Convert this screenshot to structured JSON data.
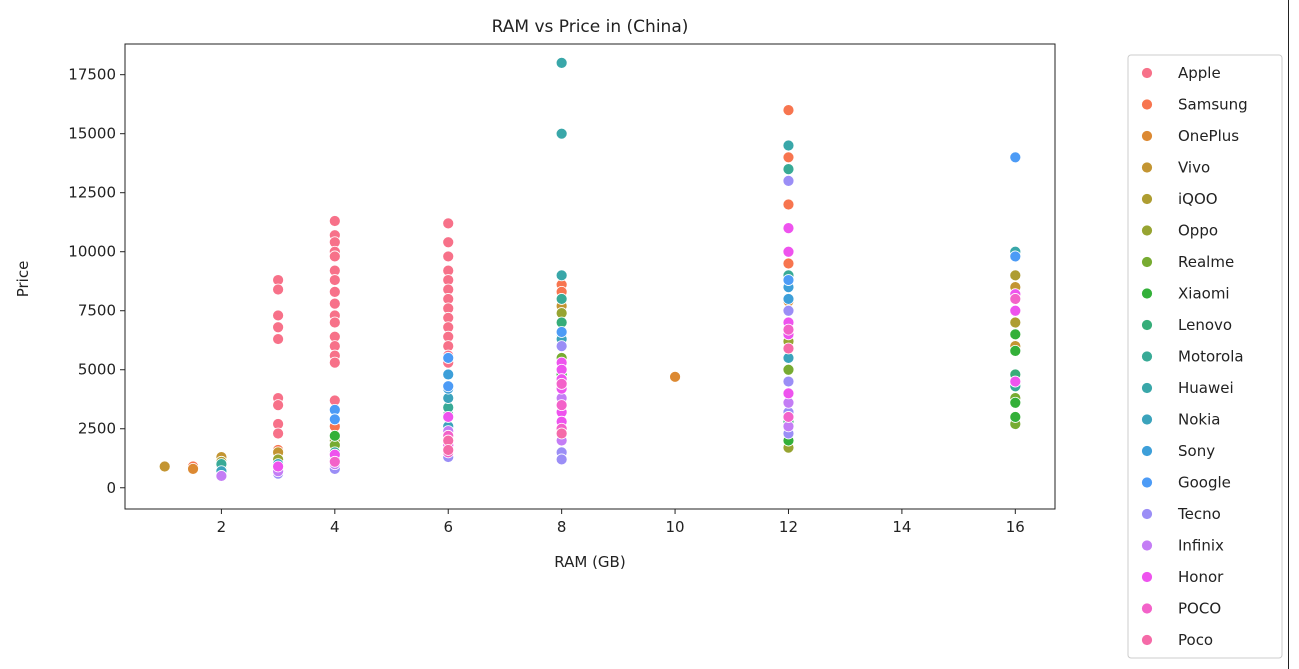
{
  "chart_data": {
    "type": "scatter",
    "title": "RAM vs Price in (China)",
    "xlabel": "RAM (GB)",
    "ylabel": "Price",
    "xlim": [
      0.3,
      16.7
    ],
    "ylim": [
      -900,
      18800
    ],
    "xticks": [
      2,
      4,
      6,
      8,
      10,
      12,
      14,
      16
    ],
    "yticks": [
      0,
      2500,
      5000,
      7500,
      10000,
      12500,
      15000,
      17500
    ],
    "legend_position": "outside-right",
    "grid": false,
    "series": [
      {
        "name": "Apple",
        "color": "#f77189",
        "points": [
          [
            3,
            8800
          ],
          [
            3,
            8400
          ],
          [
            3,
            7300
          ],
          [
            3,
            6800
          ],
          [
            3,
            6300
          ],
          [
            3,
            3800
          ],
          [
            3,
            3500
          ],
          [
            3,
            2700
          ],
          [
            3,
            2300
          ],
          [
            4,
            11300
          ],
          [
            4,
            10700
          ],
          [
            4,
            10400
          ],
          [
            4,
            10000
          ],
          [
            4,
            9800
          ],
          [
            4,
            9200
          ],
          [
            4,
            8800
          ],
          [
            4,
            8300
          ],
          [
            4,
            7800
          ],
          [
            4,
            7300
          ],
          [
            4,
            7000
          ],
          [
            4,
            6400
          ],
          [
            4,
            6000
          ],
          [
            4,
            5600
          ],
          [
            4,
            5300
          ],
          [
            4,
            3700
          ],
          [
            6,
            11200
          ],
          [
            6,
            10400
          ],
          [
            6,
            9800
          ],
          [
            6,
            9200
          ],
          [
            6,
            8800
          ],
          [
            6,
            8400
          ],
          [
            6,
            8000
          ],
          [
            6,
            7600
          ],
          [
            6,
            7200
          ],
          [
            6,
            6800
          ],
          [
            6,
            6400
          ],
          [
            6,
            6000
          ],
          [
            6,
            5600
          ],
          [
            6,
            5300
          ]
        ]
      },
      {
        "name": "Samsung",
        "color": "#f7754f",
        "points": [
          [
            1.5,
            900
          ],
          [
            3,
            1600
          ],
          [
            4,
            2600
          ],
          [
            8,
            8600
          ],
          [
            8,
            8300
          ],
          [
            12,
            16000
          ],
          [
            12,
            14000
          ],
          [
            12,
            12000
          ],
          [
            12,
            9500
          ]
        ]
      },
      {
        "name": "OnePlus",
        "color": "#dc8932",
        "points": [
          [
            1.5,
            800
          ],
          [
            10,
            4700
          ],
          [
            12,
            7900
          ]
        ]
      },
      {
        "name": "Vivo",
        "color": "#c39532",
        "points": [
          [
            1,
            900
          ],
          [
            2,
            1300
          ],
          [
            3,
            1500
          ],
          [
            8,
            7700
          ],
          [
            16,
            8500
          ],
          [
            16,
            6000
          ]
        ]
      },
      {
        "name": "iQOO",
        "color": "#ae9d31",
        "points": [
          [
            2,
            1100
          ],
          [
            16,
            9000
          ],
          [
            16,
            7000
          ]
        ]
      },
      {
        "name": "Oppo",
        "color": "#97a431",
        "points": [
          [
            3,
            1200
          ],
          [
            4,
            2000
          ],
          [
            8,
            7400
          ],
          [
            12,
            6200
          ],
          [
            12,
            1700
          ]
        ]
      },
      {
        "name": "Realme",
        "color": "#77ab31",
        "points": [
          [
            2,
            900
          ],
          [
            4,
            1800
          ],
          [
            8,
            5500
          ],
          [
            12,
            5000
          ],
          [
            16,
            3800
          ],
          [
            16,
            2700
          ]
        ]
      },
      {
        "name": "Xiaomi",
        "color": "#33b039",
        "points": [
          [
            4,
            2200
          ],
          [
            8,
            4800
          ],
          [
            12,
            2000
          ],
          [
            16,
            6500
          ],
          [
            16,
            5800
          ],
          [
            16,
            3600
          ],
          [
            16,
            3000
          ]
        ]
      },
      {
        "name": "Lenovo",
        "color": "#36ad79",
        "points": [
          [
            6,
            3100
          ],
          [
            8,
            7000
          ],
          [
            12,
            2800
          ],
          [
            16,
            4800
          ]
        ]
      },
      {
        "name": "Motorola",
        "color": "#38aa96",
        "points": [
          [
            2,
            1000
          ],
          [
            4,
            1500
          ],
          [
            6,
            3400
          ],
          [
            8,
            8000
          ],
          [
            8,
            6500
          ],
          [
            12,
            13500
          ],
          [
            12,
            9000
          ],
          [
            16,
            4300
          ]
        ]
      },
      {
        "name": "Huawei",
        "color": "#39a7a9",
        "points": [
          [
            8,
            18000
          ],
          [
            8,
            15000
          ],
          [
            8,
            9000
          ],
          [
            12,
            14500
          ],
          [
            16,
            10000
          ]
        ]
      },
      {
        "name": "Nokia",
        "color": "#3ba3bc",
        "points": [
          [
            2,
            700
          ],
          [
            3,
            1000
          ],
          [
            4,
            1200
          ],
          [
            6,
            3800
          ],
          [
            6,
            2600
          ],
          [
            8,
            6300
          ],
          [
            12,
            5500
          ]
        ]
      },
      {
        "name": "Sony",
        "color": "#3d9fd9",
        "points": [
          [
            6,
            4800
          ],
          [
            6,
            4200
          ],
          [
            12,
            8500
          ],
          [
            12,
            8000
          ]
        ]
      },
      {
        "name": "Google",
        "color": "#4c9bf6",
        "points": [
          [
            4,
            3300
          ],
          [
            4,
            2900
          ],
          [
            6,
            5500
          ],
          [
            6,
            4300
          ],
          [
            8,
            6600
          ],
          [
            12,
            8800
          ],
          [
            16,
            14000
          ],
          [
            16,
            9800
          ]
        ]
      },
      {
        "name": "Tecno",
        "color": "#9b8ef6",
        "points": [
          [
            3,
            600
          ],
          [
            4,
            800
          ],
          [
            6,
            1300
          ],
          [
            8,
            6000
          ],
          [
            8,
            1500
          ],
          [
            8,
            1200
          ],
          [
            12,
            13000
          ],
          [
            12,
            7500
          ],
          [
            12,
            4500
          ],
          [
            12,
            3200
          ],
          [
            12,
            2300
          ]
        ]
      },
      {
        "name": "Infinix",
        "color": "#c47df5",
        "points": [
          [
            2,
            500
          ],
          [
            3,
            700
          ],
          [
            4,
            1000
          ],
          [
            6,
            2400
          ],
          [
            8,
            3800
          ],
          [
            8,
            2000
          ],
          [
            12,
            3600
          ],
          [
            12,
            2600
          ]
        ]
      },
      {
        "name": "Honor",
        "color": "#ee53ee",
        "points": [
          [
            3,
            900
          ],
          [
            4,
            1400
          ],
          [
            6,
            3000
          ],
          [
            6,
            1800
          ],
          [
            8,
            5300
          ],
          [
            8,
            5000
          ],
          [
            8,
            4600
          ],
          [
            8,
            4200
          ],
          [
            8,
            3200
          ],
          [
            8,
            2800
          ],
          [
            12,
            11000
          ],
          [
            12,
            10000
          ],
          [
            12,
            7000
          ],
          [
            12,
            6500
          ],
          [
            12,
            4000
          ],
          [
            16,
            8200
          ],
          [
            16,
            7500
          ],
          [
            16,
            4500
          ]
        ]
      },
      {
        "name": "POCO",
        "color": "#f362c9",
        "points": [
          [
            4,
            1100
          ],
          [
            6,
            2200
          ],
          [
            6,
            1500
          ],
          [
            8,
            4400
          ],
          [
            8,
            3500
          ],
          [
            8,
            2500
          ],
          [
            12,
            6700
          ],
          [
            12,
            3000
          ],
          [
            16,
            8000
          ]
        ]
      },
      {
        "name": "Poco",
        "color": "#f56aa8",
        "points": [
          [
            6,
            2000
          ],
          [
            6,
            1600
          ],
          [
            8,
            2300
          ],
          [
            12,
            5900
          ]
        ]
      }
    ]
  }
}
